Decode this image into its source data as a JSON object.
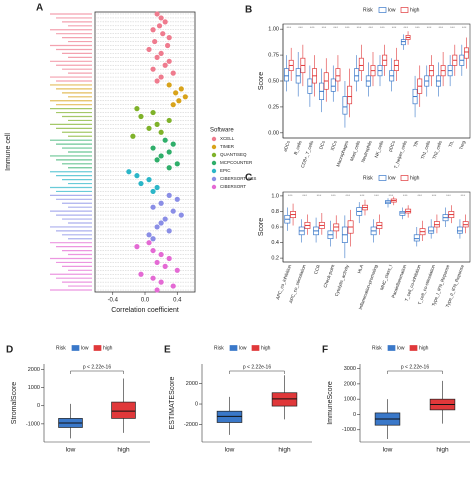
{
  "chart_data": [
    {
      "type": "scatter",
      "panel": "A",
      "ylabel": "Immune cell",
      "xlabel": "Correlation coefficient",
      "xlim": [
        -0.62,
        0.62
      ],
      "xticks": [
        -0.4,
        {
          "value": 0,
          "label": "0.0"
        },
        0.4
      ],
      "legend_title": "Software",
      "series": [
        {
          "name": "XCELL",
          "color": "#ef7b8e",
          "values": [
            0.15,
            0.2,
            0.25,
            0.18,
            0.1,
            0.22,
            0.3,
            0.12,
            0.28,
            0.05,
            0.2,
            0.15,
            0.3,
            0.25,
            0.1,
            0.35,
            0.2,
            0.15
          ]
        },
        {
          "name": "TIMER",
          "color": "#d8a31a",
          "values": [
            0.3,
            0.45,
            0.38,
            0.5,
            0.42,
            0.35
          ]
        },
        {
          "name": "QUANTISEQ",
          "color": "#7fb22a",
          "values": [
            -0.1,
            0.1,
            -0.05,
            0.3,
            0.15,
            0.05,
            0.2,
            -0.15
          ]
        },
        {
          "name": "MCPCOUNTER",
          "color": "#2fae6a",
          "values": [
            0.25,
            0.35,
            0.1,
            0.3,
            0.2,
            0.15,
            0.4,
            0.3
          ]
        },
        {
          "name": "EPIC",
          "color": "#2bb6c8",
          "values": [
            -0.2,
            -0.1,
            0.05,
            -0.05,
            0.15,
            0.1
          ]
        },
        {
          "name": "CIBERSORT-ABS",
          "color": "#8a8ee6",
          "values": [
            0.3,
            0.4,
            0.2,
            0.1,
            0.35,
            0.45,
            0.25,
            0.2,
            0.15,
            0.3,
            0.05,
            0.1
          ]
        },
        {
          "name": "CIBERSORT",
          "color": "#e46ad4",
          "values": [
            0.05,
            -0.1,
            0.1,
            0.2,
            0.3,
            0.15,
            0.25,
            0.4,
            -0.05,
            0.1,
            0.2,
            0.35,
            0.15
          ]
        }
      ]
    },
    {
      "type": "box",
      "panel": "B",
      "ylabel": "Score",
      "legend_title": "Risk",
      "categories": [
        "aDCs",
        "B_cells",
        "CD8+_T_cells",
        "DCs",
        "iDCs",
        "Macrophages",
        "Mast_cells",
        "Neutrophils",
        "NK_cells",
        "pDCs",
        "T_helper_cells",
        "Tfh",
        "Th1_cells",
        "Th2_cells",
        "TIL",
        "Treg"
      ],
      "sig": [
        "***",
        "***",
        "***",
        "***",
        "***",
        "***",
        "***",
        "***",
        "***",
        "***",
        "***",
        "***",
        "***",
        "***",
        "***",
        "***"
      ],
      "ylim": [
        -0.05,
        1.05
      ],
      "yticks": [
        {
          "value": 0,
          "label": "0.00"
        },
        {
          "value": 0.25,
          "label": "0.25"
        },
        {
          "value": 0.5,
          "label": "0.50"
        },
        {
          "value": 0.75,
          "label": "0.75"
        },
        {
          "value": 1,
          "label": "1.00"
        }
      ],
      "series": [
        {
          "name": "low",
          "color": "#3a78c9",
          "boxes": [
            [
              0.4,
              0.5,
              0.55,
              0.62,
              0.75
            ],
            [
              0.35,
              0.48,
              0.55,
              0.62,
              0.78
            ],
            [
              0.25,
              0.38,
              0.45,
              0.52,
              0.65
            ],
            [
              0.2,
              0.32,
              0.4,
              0.48,
              0.62
            ],
            [
              0.3,
              0.4,
              0.45,
              0.52,
              0.65
            ],
            [
              0.05,
              0.18,
              0.25,
              0.35,
              0.5
            ],
            [
              0.4,
              0.5,
              0.55,
              0.62,
              0.75
            ],
            [
              0.35,
              0.45,
              0.5,
              0.55,
              0.68
            ],
            [
              0.45,
              0.55,
              0.6,
              0.65,
              0.75
            ],
            [
              0.4,
              0.5,
              0.55,
              0.6,
              0.72
            ],
            [
              0.8,
              0.85,
              0.88,
              0.9,
              0.95
            ],
            [
              0.15,
              0.28,
              0.35,
              0.42,
              0.55
            ],
            [
              0.35,
              0.45,
              0.5,
              0.55,
              0.65
            ],
            [
              0.35,
              0.45,
              0.5,
              0.55,
              0.68
            ],
            [
              0.45,
              0.55,
              0.6,
              0.65,
              0.75
            ],
            [
              0.55,
              0.65,
              0.7,
              0.75,
              0.85
            ]
          ]
        },
        {
          "name": "high",
          "color": "#e0383a",
          "boxes": [
            [
              0.5,
              0.6,
              0.65,
              0.7,
              0.82
            ],
            [
              0.45,
              0.58,
              0.65,
              0.72,
              0.85
            ],
            [
              0.35,
              0.48,
              0.55,
              0.62,
              0.75
            ],
            [
              0.3,
              0.42,
              0.5,
              0.58,
              0.72
            ],
            [
              0.4,
              0.5,
              0.55,
              0.62,
              0.75
            ],
            [
              0.15,
              0.28,
              0.35,
              0.45,
              0.62
            ],
            [
              0.5,
              0.6,
              0.65,
              0.72,
              0.85
            ],
            [
              0.45,
              0.55,
              0.6,
              0.65,
              0.78
            ],
            [
              0.55,
              0.65,
              0.7,
              0.75,
              0.85
            ],
            [
              0.5,
              0.6,
              0.65,
              0.7,
              0.82
            ],
            [
              0.85,
              0.9,
              0.92,
              0.94,
              0.98
            ],
            [
              0.25,
              0.38,
              0.45,
              0.52,
              0.65
            ],
            [
              0.45,
              0.55,
              0.6,
              0.65,
              0.75
            ],
            [
              0.45,
              0.55,
              0.6,
              0.65,
              0.78
            ],
            [
              0.55,
              0.65,
              0.7,
              0.75,
              0.85
            ],
            [
              0.62,
              0.72,
              0.78,
              0.82,
              0.92
            ]
          ]
        }
      ]
    },
    {
      "type": "box",
      "panel": "C",
      "ylabel": "Score",
      "legend_title": "Risk",
      "categories": [
        "APC_co_inhibition",
        "APC_co_stimulation",
        "CCR",
        "Check-point",
        "Cytolytic_activity",
        "HLA",
        "Inflammation-promoting",
        "MHC_class_I",
        "Parainflammation",
        "T_cell_co-inhibition",
        "T_cell_co-stimulation",
        "Type_I_IFN_Reponse",
        "Type_II_IFN_Reponse"
      ],
      "sig": [
        "***",
        "***",
        "***",
        "***",
        "***",
        "***",
        "***",
        "***",
        "***",
        "***",
        "***",
        "***",
        "***"
      ],
      "ylim": [
        0.15,
        1.05
      ],
      "yticks": [
        0.2,
        0.4,
        0.6,
        0.8,
        {
          "value": 1,
          "label": "1.0"
        }
      ],
      "series": [
        {
          "name": "low",
          "color": "#3a78c9",
          "boxes": [
            [
              0.55,
              0.65,
              0.7,
              0.75,
              0.85
            ],
            [
              0.4,
              0.5,
              0.55,
              0.6,
              0.7
            ],
            [
              0.4,
              0.5,
              0.55,
              0.6,
              0.72
            ],
            [
              0.35,
              0.45,
              0.5,
              0.55,
              0.68
            ],
            [
              0.2,
              0.4,
              0.5,
              0.6,
              0.75
            ],
            [
              0.65,
              0.75,
              0.8,
              0.85,
              0.92
            ],
            [
              0.4,
              0.5,
              0.55,
              0.6,
              0.7
            ],
            [
              0.85,
              0.9,
              0.92,
              0.94,
              0.97
            ],
            [
              0.7,
              0.75,
              0.78,
              0.8,
              0.85
            ],
            [
              0.35,
              0.42,
              0.45,
              0.5,
              0.6
            ],
            [
              0.45,
              0.52,
              0.55,
              0.6,
              0.7
            ],
            [
              0.6,
              0.68,
              0.72,
              0.76,
              0.85
            ],
            [
              0.45,
              0.52,
              0.55,
              0.6,
              0.7
            ]
          ]
        },
        {
          "name": "high",
          "color": "#e0383a",
          "boxes": [
            [
              0.62,
              0.72,
              0.76,
              0.8,
              0.9
            ],
            [
              0.5,
              0.58,
              0.62,
              0.66,
              0.76
            ],
            [
              0.5,
              0.58,
              0.62,
              0.66,
              0.78
            ],
            [
              0.45,
              0.55,
              0.6,
              0.64,
              0.75
            ],
            [
              0.35,
              0.52,
              0.6,
              0.68,
              0.82
            ],
            [
              0.75,
              0.82,
              0.85,
              0.88,
              0.95
            ],
            [
              0.5,
              0.58,
              0.62,
              0.66,
              0.76
            ],
            [
              0.88,
              0.92,
              0.94,
              0.96,
              0.99
            ],
            [
              0.72,
              0.78,
              0.8,
              0.83,
              0.88
            ],
            [
              0.42,
              0.5,
              0.54,
              0.58,
              0.68
            ],
            [
              0.52,
              0.6,
              0.63,
              0.67,
              0.76
            ],
            [
              0.65,
              0.72,
              0.76,
              0.8,
              0.88
            ],
            [
              0.52,
              0.6,
              0.63,
              0.67,
              0.76
            ]
          ]
        }
      ]
    },
    {
      "type": "box",
      "panel": "D",
      "ylabel": "StromalScore",
      "legend_title": "Risk",
      "pvalue": "p < 2.22e-16",
      "categories": [
        "low",
        "high"
      ],
      "ylim": [
        -2000,
        2300
      ],
      "yticks": [
        -1000,
        0,
        1000,
        2000
      ],
      "grouped": false,
      "series": [
        {
          "name": "low",
          "color": "#3a78c9",
          "boxes": [
            [
              -1800,
              -1200,
              -950,
              -700,
              100
            ],
            null
          ]
        },
        {
          "name": "high",
          "color": "#e0383a",
          "boxes": [
            null,
            [
              -1500,
              -700,
              -300,
              200,
              1500
            ]
          ]
        }
      ]
    },
    {
      "type": "box",
      "panel": "E",
      "ylabel": "ESTIMATEScore",
      "legend_title": "Risk",
      "pvalue": "p < 2.22e-16",
      "categories": [
        "low",
        "high"
      ],
      "ylim": [
        -3700,
        3900
      ],
      "yticks": [
        -2000,
        0,
        2000
      ],
      "grouped": false,
      "series": [
        {
          "name": "low",
          "color": "#3a78c9",
          "boxes": [
            [
              -3000,
              -1800,
              -1200,
              -700,
              700
            ],
            null
          ]
        },
        {
          "name": "high",
          "color": "#e0383a",
          "boxes": [
            null,
            [
              -1500,
              -200,
              500,
              1100,
              2800
            ]
          ]
        }
      ]
    },
    {
      "type": "box",
      "panel": "F",
      "ylabel": "ImmuneScore",
      "legend_title": "Risk",
      "pvalue": "p < 2.22e-16",
      "categories": [
        "low",
        "high"
      ],
      "ylim": [
        -1800,
        3300
      ],
      "yticks": [
        -1000,
        0,
        1000,
        2000,
        3000
      ],
      "grouped": false,
      "series": [
        {
          "name": "low",
          "color": "#3a78c9",
          "boxes": [
            [
              -1600,
              -700,
              -300,
              100,
              1000
            ],
            null
          ]
        },
        {
          "name": "high",
          "color": "#e0383a",
          "boxes": [
            null,
            [
              -600,
              300,
              650,
              1000,
              2200
            ]
          ]
        }
      ]
    }
  ]
}
